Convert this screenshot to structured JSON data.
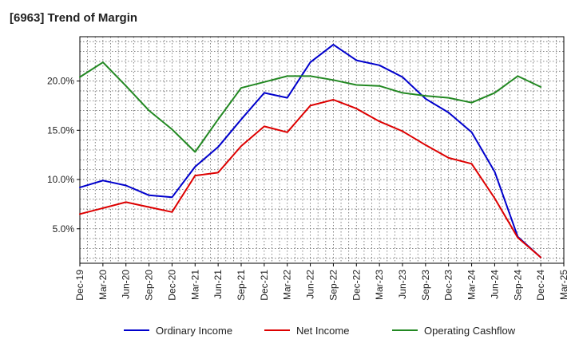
{
  "chart_data": {
    "type": "line",
    "title": "[6963]  Trend of Margin",
    "xlabel": "",
    "ylabel": "",
    "x": [
      "Dec-19",
      "Mar-20",
      "Jun-20",
      "Sep-20",
      "Dec-20",
      "Mar-21",
      "Jun-21",
      "Sep-21",
      "Dec-21",
      "Mar-22",
      "Jun-22",
      "Sep-22",
      "Dec-22",
      "Mar-23",
      "Jun-23",
      "Sep-23",
      "Dec-23",
      "Mar-24",
      "Jun-24",
      "Sep-24",
      "Dec-24"
    ],
    "x_ticks": [
      "Dec-19",
      "Mar-20",
      "Jun-20",
      "Sep-20",
      "Dec-20",
      "Mar-21",
      "Jun-21",
      "Sep-21",
      "Dec-21",
      "Mar-22",
      "Jun-22",
      "Sep-22",
      "Dec-22",
      "Mar-23",
      "Jun-23",
      "Sep-23",
      "Dec-23",
      "Mar-24",
      "Jun-24",
      "Sep-24",
      "Dec-24",
      "Mar-25"
    ],
    "y_ticks": [
      5.0,
      10.0,
      15.0,
      20.0
    ],
    "y_tick_labels": [
      "5.0%",
      "10.0%",
      "15.0%",
      "20.0%"
    ],
    "ylim": [
      1.5,
      24.5
    ],
    "grid": true,
    "legend_position": "bottom",
    "series": [
      {
        "name": "Ordinary Income",
        "color": "#0000cc",
        "values": [
          9.2,
          9.9,
          9.4,
          8.4,
          8.2,
          11.3,
          13.3,
          16.1,
          18.8,
          18.3,
          21.9,
          23.7,
          22.1,
          21.6,
          20.4,
          18.2,
          16.8,
          14.8,
          10.8,
          4.2,
          2.1
        ]
      },
      {
        "name": "Net Income",
        "color": "#dd0000",
        "values": [
          6.5,
          7.1,
          7.7,
          7.2,
          6.7,
          10.4,
          10.7,
          13.4,
          15.4,
          14.8,
          17.5,
          18.1,
          17.2,
          15.9,
          14.9,
          13.5,
          12.2,
          11.6,
          8.1,
          4.1,
          2.1
        ]
      },
      {
        "name": "Operating Cashflow",
        "color": "#228822",
        "values": [
          20.4,
          21.9,
          19.5,
          17.0,
          15.1,
          12.8,
          16.1,
          19.3,
          19.9,
          20.5,
          20.5,
          20.1,
          19.6,
          19.5,
          18.8,
          18.5,
          18.3,
          17.8,
          18.8,
          20.5,
          19.4
        ]
      }
    ]
  }
}
